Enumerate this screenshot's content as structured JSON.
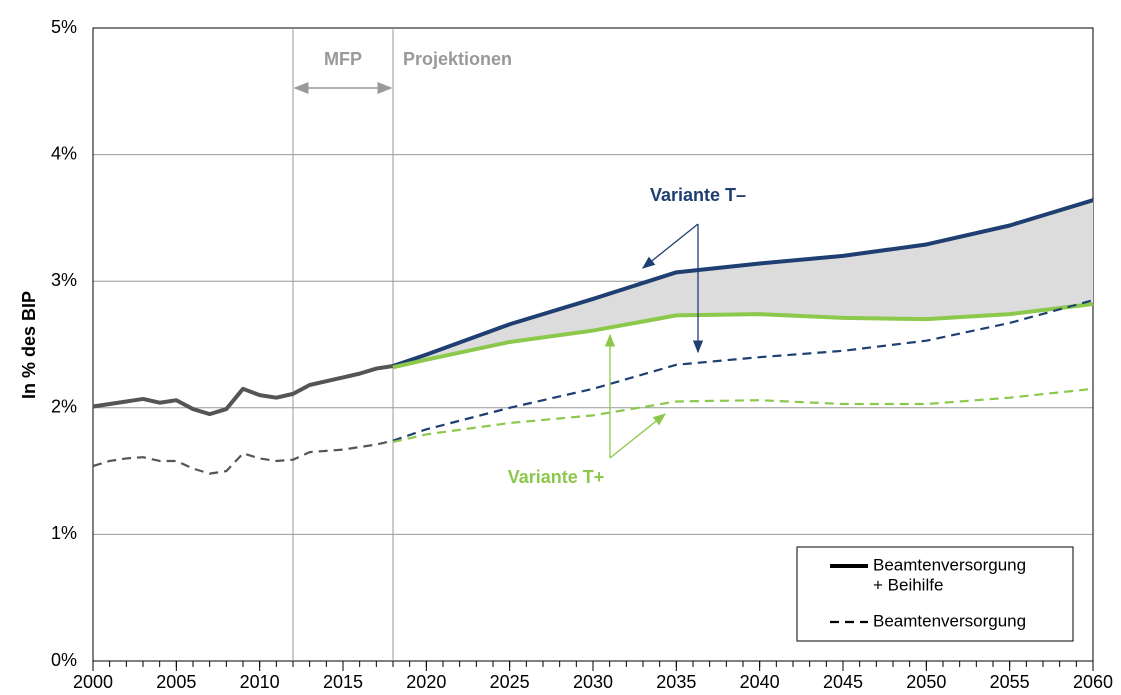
{
  "chart_data": {
    "type": "line",
    "ylabel": "In % des BIP",
    "xlim": [
      2000,
      2060
    ],
    "ylim": [
      0,
      5
    ],
    "xticks": [
      2000,
      2005,
      2010,
      2015,
      2020,
      2025,
      2030,
      2035,
      2040,
      2045,
      2050,
      2055,
      2060
    ],
    "xminorticks": [
      2000,
      2001,
      2002,
      2003,
      2004,
      2005,
      2006,
      2007,
      2008,
      2009,
      2010,
      2011,
      2012,
      2013,
      2014,
      2015,
      2016,
      2017,
      2018,
      2019,
      2020,
      2021,
      2022,
      2023,
      2024,
      2025,
      2026,
      2027,
      2028,
      2029,
      2030,
      2031,
      2032,
      2033,
      2034,
      2035,
      2036,
      2037,
      2038,
      2039,
      2040,
      2041,
      2042,
      2043,
      2044,
      2045,
      2046,
      2047,
      2048,
      2049,
      2050,
      2051,
      2052,
      2053,
      2054,
      2055,
      2056,
      2057,
      2058,
      2059,
      2060
    ],
    "yticks": [
      {
        "value": 0,
        "label": "0%"
      },
      {
        "value": 1,
        "label": "1%"
      },
      {
        "value": 2,
        "label": "2%"
      },
      {
        "value": 3,
        "label": "3%"
      },
      {
        "value": 4,
        "label": "4%"
      },
      {
        "value": 5,
        "label": "5%"
      }
    ],
    "grid": true,
    "vlines": [
      {
        "x": 2012,
        "label": "MFP"
      },
      {
        "x": 2018,
        "label": "Projektionen"
      }
    ],
    "series": [
      {
        "color": "#555555",
        "dash": false,
        "x": [
          2000,
          2001,
          2002,
          2003,
          2004,
          2005,
          2006,
          2007,
          2008,
          2009,
          2010,
          2011,
          2012,
          2013,
          2014,
          2015,
          2016,
          2017,
          2018
        ],
        "values": [
          2.01,
          2.03,
          2.05,
          2.07,
          2.04,
          2.06,
          1.99,
          1.95,
          1.99,
          2.15,
          2.1,
          2.08,
          2.11,
          2.18,
          2.21,
          2.24,
          2.27,
          2.31,
          2.33
        ]
      },
      {
        "color": "#555555",
        "dash": true,
        "x": [
          2000,
          2001,
          2002,
          2003,
          2004,
          2005,
          2006,
          2007,
          2008,
          2009,
          2010,
          2011,
          2012,
          2013,
          2014,
          2015,
          2016,
          2017,
          2018
        ],
        "values": [
          1.54,
          1.58,
          1.6,
          1.61,
          1.58,
          1.58,
          1.52,
          1.48,
          1.5,
          1.64,
          1.6,
          1.58,
          1.59,
          1.65,
          1.66,
          1.67,
          1.69,
          1.71,
          1.74
        ]
      },
      {
        "color": "#1f3f73",
        "dash": false,
        "x": [
          2018,
          2020,
          2025,
          2030,
          2035,
          2040,
          2045,
          2050,
          2055,
          2060
        ],
        "values": [
          2.33,
          2.42,
          2.66,
          2.86,
          3.07,
          3.14,
          3.2,
          3.29,
          3.44,
          3.64
        ]
      },
      {
        "color": "#8cc84b",
        "dash": false,
        "x": [
          2018,
          2020,
          2025,
          2030,
          2035,
          2040,
          2045,
          2050,
          2055,
          2060
        ],
        "values": [
          2.32,
          2.38,
          2.52,
          2.61,
          2.73,
          2.74,
          2.71,
          2.7,
          2.74,
          2.82
        ]
      },
      {
        "color": "#1f3f73",
        "dash": true,
        "x": [
          2018,
          2020,
          2025,
          2030,
          2035,
          2040,
          2045,
          2050,
          2055,
          2060
        ],
        "values": [
          1.74,
          1.83,
          2.0,
          2.15,
          2.34,
          2.4,
          2.45,
          2.53,
          2.67,
          2.85
        ]
      },
      {
        "color": "#8cc84b",
        "dash": true,
        "x": [
          2018,
          2020,
          2025,
          2030,
          2035,
          2040,
          2045,
          2050,
          2055,
          2060
        ],
        "values": [
          1.73,
          1.79,
          1.88,
          1.94,
          2.05,
          2.06,
          2.03,
          2.03,
          2.08,
          2.15
        ]
      }
    ],
    "annotations": [
      {
        "text": "Variante T–",
        "color": "#1f3f73"
      },
      {
        "text": "Variante T+",
        "color": "#8cc84b"
      }
    ],
    "legend": [
      {
        "label": [
          "Beamtenversorgung",
          "+ Beihilfe"
        ],
        "dash": false
      },
      {
        "label": [
          "Beamtenversorgung"
        ],
        "dash": true
      }
    ]
  }
}
